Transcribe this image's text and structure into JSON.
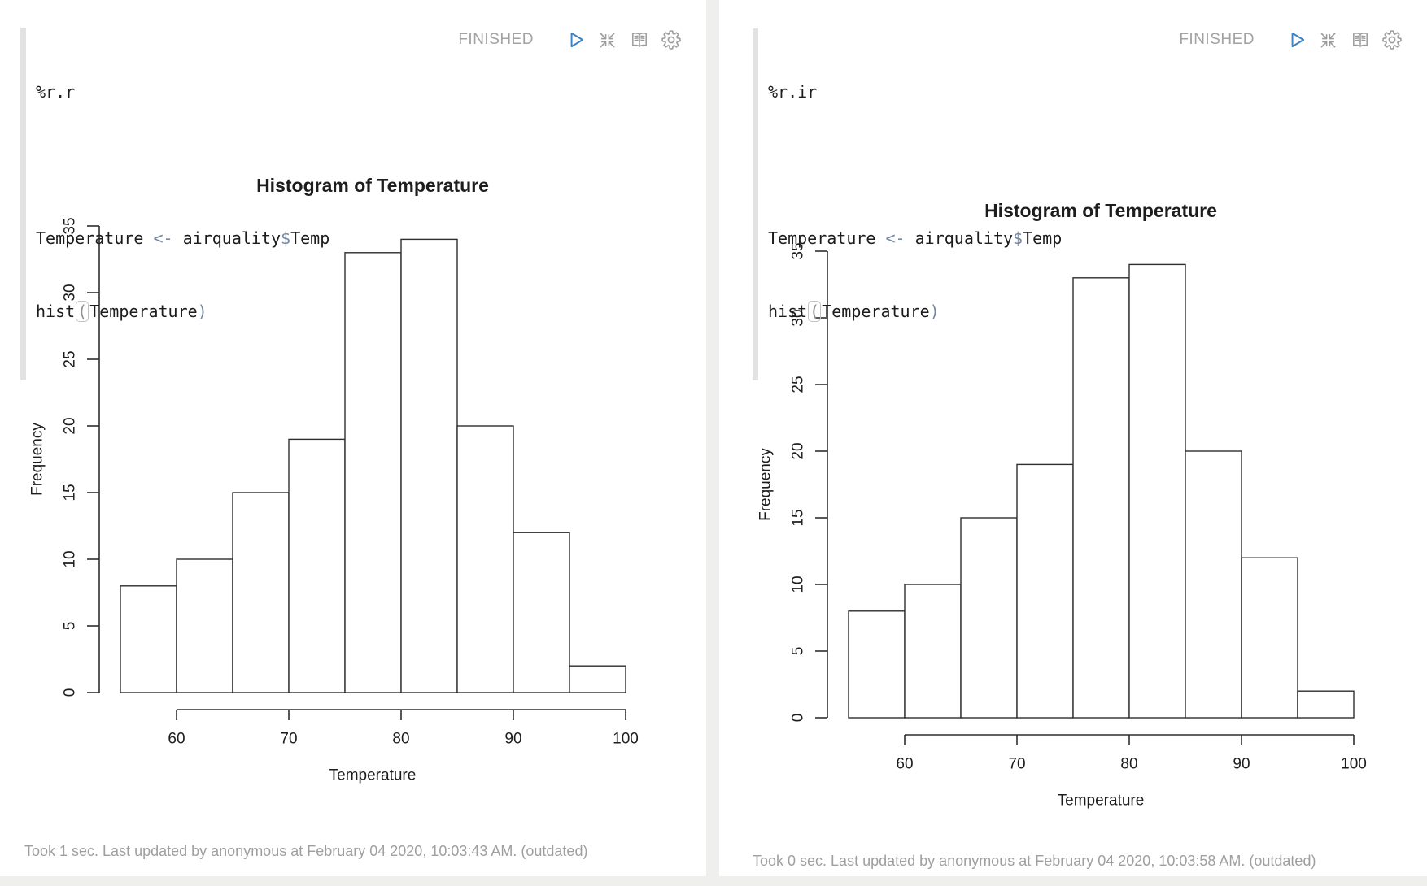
{
  "page": {
    "background_color": "#efefee",
    "card_color": "#ffffff"
  },
  "colors": {
    "play_accent": "#4081c2",
    "icon_gray": "#9b9b9b",
    "status_gray": "#a2a2a2",
    "footer_gray": "#9f9f9f",
    "code_operator": "#7287a3",
    "plot_ink": "#2e2e2e"
  },
  "paragraphs": [
    {
      "interpreter": "%r.r",
      "status": "FINISHED",
      "code": [
        [
          {
            "text": "Temperature ",
            "type": "plain"
          },
          {
            "text": "<-",
            "type": "operator"
          },
          {
            "text": " airquality",
            "type": "plain"
          },
          {
            "text": "$",
            "type": "operator"
          },
          {
            "text": "Temp",
            "type": "plain"
          }
        ],
        [
          {
            "text": "hist",
            "type": "plain"
          },
          {
            "text": "(",
            "type": "paren-open"
          },
          {
            "text": "Temperature",
            "type": "plain"
          },
          {
            "text": ")",
            "type": "paren-close"
          }
        ]
      ],
      "footer": "Took 1 sec. Last updated by anonymous at February 04 2020, 10:03:43 AM. (outdated)"
    },
    {
      "interpreter": "%r.ir",
      "status": "FINISHED",
      "code": [
        [
          {
            "text": "Temperature ",
            "type": "plain"
          },
          {
            "text": "<-",
            "type": "operator"
          },
          {
            "text": " airquality",
            "type": "plain"
          },
          {
            "text": "$",
            "type": "operator"
          },
          {
            "text": "Temp",
            "type": "plain"
          }
        ],
        [
          {
            "text": "hist",
            "type": "plain"
          },
          {
            "text": "(",
            "type": "paren-open"
          },
          {
            "text": "Temperature",
            "type": "plain"
          },
          {
            "text": ")",
            "type": "paren-close"
          }
        ]
      ],
      "footer": "Took 0 sec. Last updated by anonymous at February 04 2020, 10:03:58 AM. (outdated)"
    }
  ],
  "chart_data": [
    {
      "type": "bar",
      "title": "Histogram of Temperature",
      "xlabel": "Temperature",
      "ylabel": "Frequency",
      "bin_edges": [
        55,
        60,
        65,
        70,
        75,
        80,
        85,
        90,
        95,
        100
      ],
      "frequencies": [
        8,
        10,
        15,
        19,
        33,
        34,
        20,
        12,
        2
      ],
      "x_ticks": [
        60,
        70,
        80,
        90,
        100
      ],
      "y_ticks": [
        0,
        5,
        10,
        15,
        20,
        25,
        30,
        35
      ],
      "xlim": [
        55,
        100
      ],
      "ylim": [
        0,
        35
      ],
      "grid": false,
      "legend": "none",
      "bar_fill": "#ffffff",
      "bar_stroke": "#2e2e2e"
    },
    {
      "type": "bar",
      "title": "Histogram of Temperature",
      "xlabel": "Temperature",
      "ylabel": "Frequency",
      "bin_edges": [
        55,
        60,
        65,
        70,
        75,
        80,
        85,
        90,
        95,
        100
      ],
      "frequencies": [
        8,
        10,
        15,
        19,
        33,
        34,
        20,
        12,
        2
      ],
      "x_ticks": [
        60,
        70,
        80,
        90,
        100
      ],
      "y_ticks": [
        0,
        5,
        10,
        15,
        20,
        25,
        30,
        35
      ],
      "xlim": [
        55,
        100
      ],
      "ylim": [
        0,
        35
      ],
      "grid": false,
      "legend": "none",
      "bar_fill": "#ffffff",
      "bar_stroke": "#2e2e2e"
    }
  ]
}
